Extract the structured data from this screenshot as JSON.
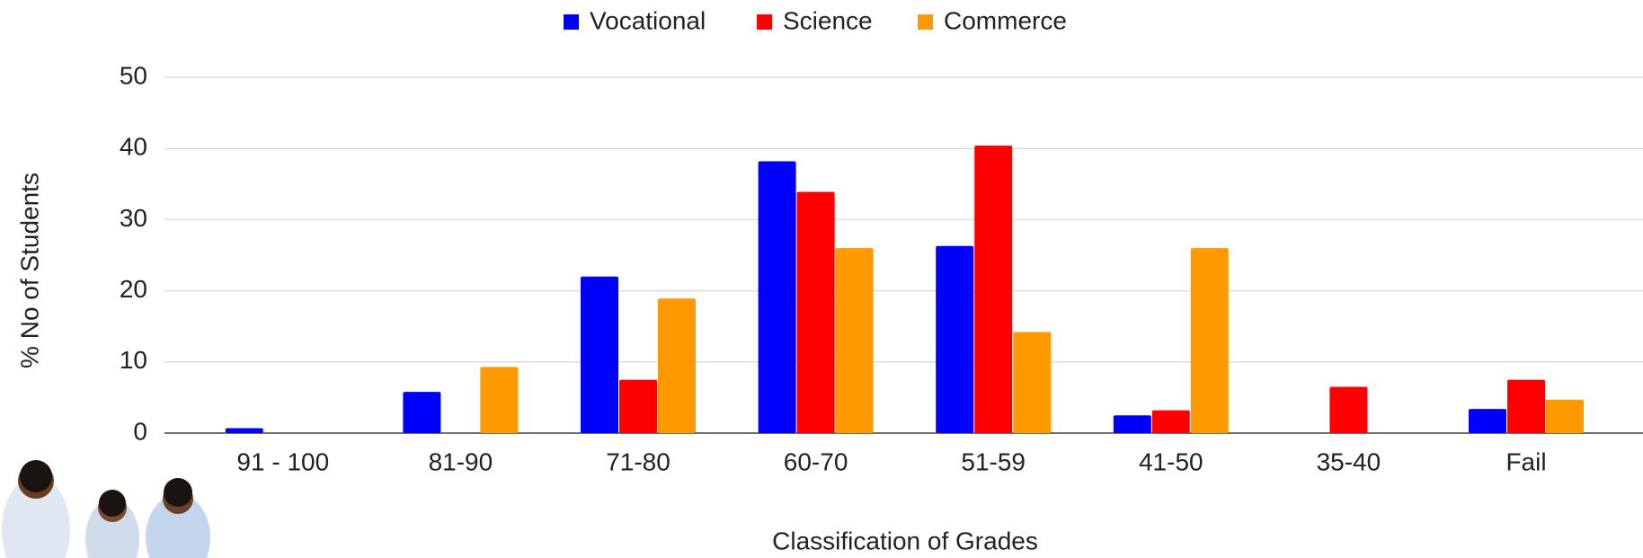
{
  "chart_data": {
    "type": "bar",
    "x_label": "Classification of Grades",
    "y_label": "% No of Students",
    "categories": [
      "91 - 100",
      "81-90",
      "71-80",
      "60-70",
      "51-59",
      "41-50",
      "35-40",
      "Fail"
    ],
    "series": [
      {
        "name": "Vocational",
        "color": "#0000ff",
        "values": [
          0.7,
          5.8,
          22,
          38.2,
          26.3,
          2.5,
          0,
          3.4
        ]
      },
      {
        "name": "Science",
        "color": "#ff0000",
        "values": [
          0,
          0,
          7.5,
          33.9,
          40.4,
          3.2,
          6.5,
          7.5
        ]
      },
      {
        "name": "Commerce",
        "color": "#ff9900",
        "values": [
          0,
          9.3,
          18.9,
          26,
          14.2,
          26,
          0,
          4.7
        ]
      }
    ],
    "ylim": [
      0,
      50
    ],
    "yticks": [
      0,
      10,
      20,
      30,
      40,
      50
    ],
    "grid": true,
    "legend": "top"
  }
}
